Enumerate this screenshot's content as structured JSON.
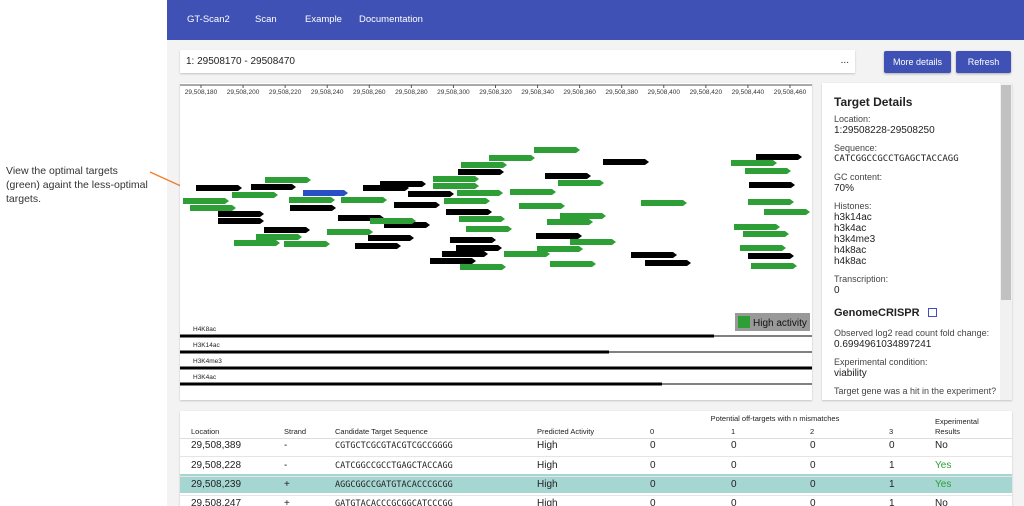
{
  "annotation": [
    "View the optimal targets",
    "(green) againt the less-optimal",
    "targets."
  ],
  "nav": [
    "GT-Scan2",
    "Scan",
    "Example",
    "Documentation"
  ],
  "search": {
    "value": "1: 29508170 - 29508470",
    "menu": "..."
  },
  "buttons": [
    "More details",
    "Refresh"
  ],
  "browser": {
    "ruler": [
      "29,508,180",
      "29,508,200",
      "29,508,220",
      "29,508,240",
      "29,508,260",
      "29,508,280",
      "29,508,300",
      "29,508,320",
      "29,508,340",
      "29,508,360",
      "29,508,380",
      "29,508,400",
      "29,508,420",
      "29,508,440",
      "29,508,460"
    ],
    "legend": "High activity",
    "tracks": [
      "H4K8ac",
      "H3K14ac",
      "H3K4me3",
      "H3K4ac"
    ]
  },
  "details": {
    "title": "Target Details",
    "fields": [
      {
        "label": "Location:",
        "value": [
          "1:29508228-29508250"
        ]
      },
      {
        "label": "Sequence:",
        "value": [
          "CATCGGCCGCCTGAGCTACCAGG"
        ]
      },
      {
        "label": "GC content:",
        "value": [
          "70%"
        ]
      },
      {
        "label": "Histones:",
        "value": [
          "h3k14ac",
          "h3k4ac",
          "h3k4me3",
          "h4k8ac",
          "h4k8ac"
        ]
      },
      {
        "label": "Transcription:",
        "value": [
          "0"
        ]
      }
    ],
    "crispr_title": "GenomeCRISPR",
    "crispr_fields": [
      {
        "label": "Observed log2 read count fold change:",
        "value": [
          "0.6994961034897241"
        ]
      },
      {
        "label": "Experimental condition:",
        "value": [
          "viability"
        ]
      },
      {
        "label": "Target gene was a hit in the experiment?",
        "value": []
      }
    ]
  },
  "table": {
    "group_header": "Potential off-targets with n mismatches",
    "headers": [
      "Location",
      "Strand",
      "Candidate Target Sequence",
      "Predicted Activity",
      "0",
      "1",
      "2",
      "3",
      "Experimental Results"
    ],
    "rows": [
      [
        "29,508,389",
        "-",
        "CGTGCTCGCGTACGTCGCCGGGG",
        "High",
        "0",
        "0",
        "0",
        "0",
        "No"
      ],
      [
        "29,508,228",
        "-",
        "CATCGGCCGCCTGAGCTACCAGG",
        "High",
        "0",
        "0",
        "0",
        "1",
        "Yes"
      ],
      [
        "29,508,239",
        "+",
        "AGGCGGCCGATGTACACCCGCGG",
        "High",
        "0",
        "0",
        "0",
        "1",
        "Yes"
      ],
      [
        "29,508,247",
        "+",
        "GATGTACACCCGCGGCATCCCGG",
        "High",
        "0",
        "0",
        "0",
        "1",
        "No"
      ]
    ]
  }
}
